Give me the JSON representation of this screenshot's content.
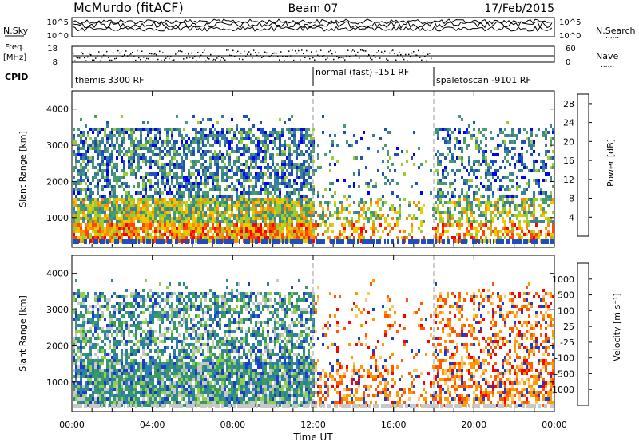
{
  "header": {
    "station": "McMurdo (fitACF)",
    "beam": "Beam 07",
    "date": "17/Feb/2015"
  },
  "aux_labels": {
    "n_sky": "N.Sky",
    "n_search": "N.Search",
    "freq_line1": "Freq.",
    "freq_line2": "[MHz]",
    "nave": "Nave",
    "cpid": "CPID",
    "dots": "......"
  },
  "aux_ticks": {
    "noise_left_top": "10^5",
    "noise_left_bottom": "10^0",
    "noise_right_top": "10^5",
    "noise_right_bottom": "10^0",
    "freq_top": "18",
    "freq_bottom": "8",
    "nave_top": "60",
    "nave_bottom": "0"
  },
  "cpid_segments": [
    {
      "label": "themis 3300 RF",
      "start_hour": 0
    },
    {
      "label": "normal (fast) -151 RF",
      "start_hour": 12
    },
    {
      "label": "spaletoscan -9101 RF",
      "start_hour": 18
    }
  ],
  "colors": {
    "power": [
      "#0000ff",
      "#1e4fbf",
      "#3a7f9a",
      "#4a9a70",
      "#9acd32",
      "#f0c800",
      "#ff8c00",
      "#ff4500",
      "#ff0000"
    ],
    "velocity": [
      "#ff0000",
      "#ff5a00",
      "#ff9900",
      "#ffc466",
      "#c8c8c8",
      "#8fd14f",
      "#3a9a60",
      "#2c7fa8",
      "#1a3ccf"
    ]
  },
  "chart_data": [
    {
      "type": "heatmap",
      "title": "",
      "xlabel": "Time UT",
      "ylabel": "Slant Range [km]",
      "x_ticks": [
        "00:00",
        "04:00",
        "08:00",
        "12:00",
        "16:00",
        "20:00",
        "00:00"
      ],
      "x_range_hours": [
        0,
        24
      ],
      "y_ticks": [
        "1000",
        "2000",
        "3000",
        "4000"
      ],
      "y_range_km": [
        180,
        4500
      ],
      "colorbar": {
        "label": "Power [dB]",
        "ticks": [
          "4",
          "8",
          "12",
          "16",
          "20",
          "24",
          "28"
        ],
        "range": [
          0,
          30
        ]
      },
      "vertical_markers_hours": [
        12,
        18
      ],
      "grid": false
    },
    {
      "type": "heatmap",
      "title": "",
      "xlabel": "Time UT",
      "ylabel": "Slant Range [km]",
      "x_ticks": [
        "00:00",
        "04:00",
        "08:00",
        "12:00",
        "16:00",
        "20:00",
        "00:00"
      ],
      "x_range_hours": [
        0,
        24
      ],
      "y_ticks": [
        "1000",
        "2000",
        "3000",
        "4000"
      ],
      "y_range_km": [
        180,
        4500
      ],
      "colorbar": {
        "label": "Velocity [m s⁻¹]",
        "ticks": [
          "1000",
          "500",
          "100",
          "25",
          "-25",
          "-100",
          "-500",
          "-1000"
        ],
        "range": [
          -1000,
          1000
        ]
      },
      "vertical_markers_hours": [
        12,
        18
      ],
      "grid": false
    }
  ]
}
